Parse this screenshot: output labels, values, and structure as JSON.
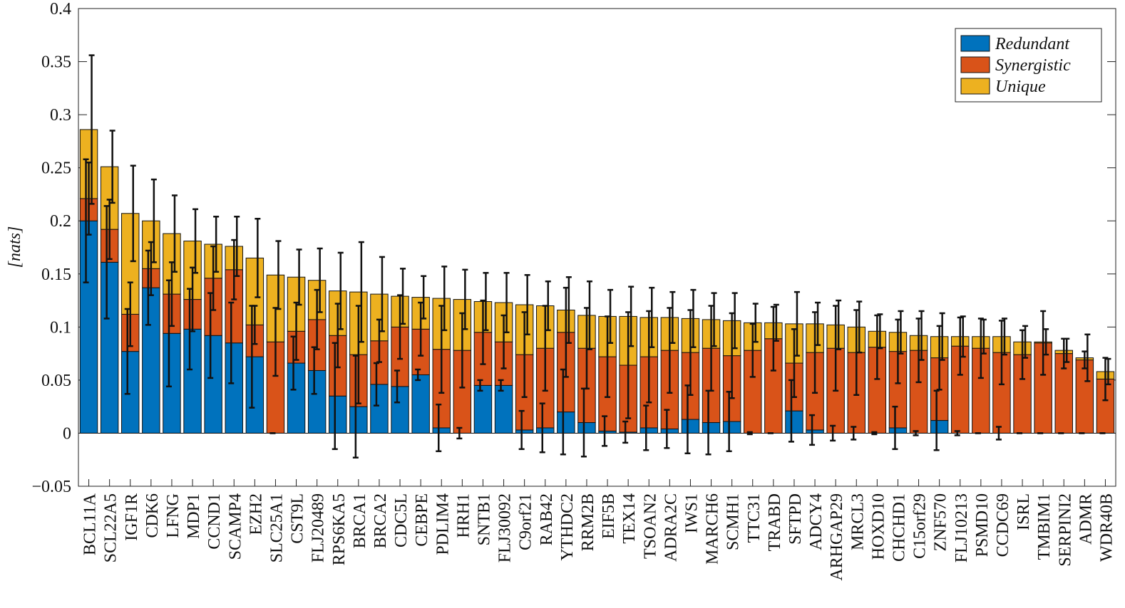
{
  "chart_data": {
    "type": "stacked-bar-errorbar",
    "y_label": "[nats]",
    "categories": [
      "BCL11A",
      "SCL22A5",
      "IGF1R",
      "CDK6",
      "LFNG",
      "MDP1",
      "CCND1",
      "SCAMP4",
      "EZH2",
      "SLC25A1",
      "CST9L",
      "FLJ20489",
      "RPS6KA5",
      "BRCA1",
      "BRCA2",
      "CDC5L",
      "CEBPE",
      "PDLIM4",
      "HRH1",
      "SNTB1",
      "FLJ30092",
      "C9orf21",
      "RAB42",
      "YTHDC2",
      "RRM2B",
      "EIF5B",
      "TEX14",
      "TSOAN2",
      "ADRA2C",
      "IWS1",
      "MARCH6",
      "SCMH1",
      "TTC31",
      "TRABD",
      "SFTPD",
      "ADCY4",
      "ARHGAP29",
      "MRCL3",
      "HOXD10",
      "CHCHD1",
      "C15orf29",
      "ZNF570",
      "FLJ10213",
      "PSMD10",
      "CCDC69",
      "ISRL",
      "TMBIM1",
      "SERPINI2",
      "ADMR",
      "WDR40B"
    ],
    "series": [
      {
        "name": "Redundant",
        "color": "#0072bd",
        "values": [
          0.2,
          0.161,
          0.077,
          0.137,
          0.094,
          0.098,
          0.092,
          0.085,
          0.072,
          0,
          0.066,
          0.059,
          0.035,
          0.025,
          0.046,
          0.044,
          0.055,
          0.005,
          0,
          0.045,
          0.045,
          0.003,
          0.005,
          0.02,
          0.01,
          0.002,
          0.001,
          0.005,
          0.004,
          0.013,
          0.01,
          0.011,
          0,
          0,
          0.021,
          0.003,
          0,
          0,
          0,
          0.005,
          0,
          0.012,
          0,
          0,
          0,
          0,
          0,
          0,
          0,
          0
        ],
        "errors": [
          0.058,
          0.053,
          0.04,
          0.035,
          0.05,
          0.038,
          0.04,
          0.038,
          0.048,
          0,
          0.025,
          0.022,
          0.05,
          0.048,
          0.02,
          0.015,
          0.005,
          0.022,
          0.005,
          0.005,
          0.005,
          0.018,
          0.023,
          0.04,
          0.032,
          0.014,
          0.01,
          0.021,
          0.018,
          0.032,
          0.03,
          0.028,
          0.001,
          0,
          0.029,
          0.014,
          0.007,
          0.006,
          0.001,
          0.02,
          0.002,
          0.028,
          0.002,
          0,
          0.006,
          0,
          0,
          0,
          0,
          0
        ]
      },
      {
        "name": "Synergistic",
        "color": "#d95319",
        "values": [
          0.021,
          0.031,
          0.035,
          0.018,
          0.037,
          0.028,
          0.054,
          0.069,
          0.03,
          0.086,
          0.03,
          0.048,
          0.057,
          0.049,
          0.041,
          0.056,
          0.043,
          0.074,
          0.078,
          0.05,
          0.041,
          0.071,
          0.075,
          0.075,
          0.07,
          0.07,
          0.063,
          0.067,
          0.074,
          0.063,
          0.07,
          0.062,
          0.078,
          0.089,
          0.045,
          0.073,
          0.08,
          0.076,
          0.081,
          0.072,
          0.078,
          0.059,
          0.082,
          0.08,
          0.076,
          0.074,
          0.085,
          0.075,
          0.069,
          0.051
        ],
        "errors": [
          0.034,
          0.028,
          0.03,
          0.025,
          0.03,
          0.03,
          0.03,
          0.028,
          0.018,
          0.032,
          0.027,
          0.028,
          0.03,
          0.046,
          0.02,
          0.03,
          0.025,
          0.041,
          0.035,
          0.03,
          0.025,
          0.04,
          0.04,
          0.042,
          0.038,
          0.038,
          0.05,
          0.043,
          0.04,
          0.04,
          0.04,
          0.04,
          0.025,
          0.03,
          0.032,
          0.038,
          0.04,
          0.04,
          0.03,
          0.03,
          0.03,
          0.03,
          0.027,
          0.028,
          0.03,
          0.023,
          0.03,
          0.014,
          0.008,
          0.02
        ]
      },
      {
        "name": "Unique",
        "color": "#edb120",
        "values": [
          0.065,
          0.059,
          0.095,
          0.045,
          0.057,
          0.055,
          0.032,
          0.022,
          0.063,
          0.063,
          0.051,
          0.037,
          0.042,
          0.059,
          0.044,
          0.029,
          0.03,
          0.048,
          0.048,
          0.029,
          0.037,
          0.047,
          0.04,
          0.021,
          0.031,
          0.038,
          0.046,
          0.037,
          0.031,
          0.032,
          0.027,
          0.033,
          0.026,
          0.015,
          0.037,
          0.027,
          0.022,
          0.024,
          0.015,
          0.018,
          0.014,
          0.02,
          0.009,
          0.011,
          0.015,
          0.012,
          0.001,
          0.003,
          0.002,
          0.007
        ],
        "errors": [
          0.07,
          0.034,
          0.045,
          0.039,
          0.036,
          0.03,
          0.026,
          0.028,
          0.037,
          0.032,
          0.026,
          0.03,
          0.036,
          0.047,
          0.035,
          0.026,
          0.02,
          0.03,
          0.028,
          0.027,
          0.028,
          0.028,
          0.023,
          0.031,
          0.032,
          0.025,
          0.028,
          0.028,
          0.024,
          0.027,
          0.025,
          0.026,
          0.018,
          0.017,
          0.03,
          0.02,
          0.023,
          0.024,
          0.016,
          0.02,
          0.023,
          0.022,
          0.019,
          0.016,
          0.017,
          0.015,
          0.012,
          0.011,
          0.022,
          0.012
        ]
      }
    ],
    "ylim": [
      -0.05,
      0.4
    ],
    "yticks": [
      {
        "value": -0.05,
        "label": "−0.05"
      },
      0,
      0.05,
      0.1,
      0.15,
      0.2,
      0.25,
      0.3,
      0.35,
      0.4
    ],
    "legend": "top-right"
  }
}
